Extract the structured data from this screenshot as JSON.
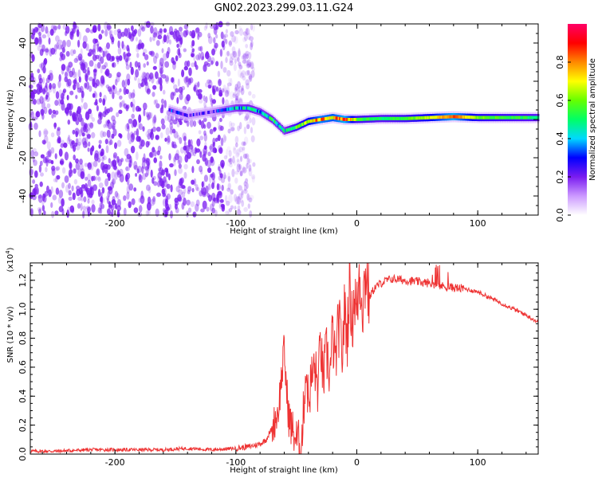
{
  "title": "GN02.2023.299.03.11.G24",
  "colors": {
    "snr_line": "#ee3333",
    "axis": "#000000",
    "spectrogram_points": "#7a1cf0",
    "colorbar_stops": [
      "#ffffff",
      "#cc99ff",
      "#7a1cf0",
      "#0000ff",
      "#00d9ff",
      "#00ff66",
      "#66ff00",
      "#ffff00",
      "#ff8800",
      "#ff0000",
      "#ff0066"
    ]
  },
  "chart_data": [
    {
      "type": "heatmap",
      "xlabel": "Height of straight line (km)",
      "ylabel": "Frequency (Hz)",
      "xlim": [
        -270,
        150
      ],
      "ylim": [
        -50,
        50
      ],
      "x_ticks": [
        -200,
        -100,
        0,
        100
      ],
      "x_tick_labels": [
        "-200",
        "-100",
        "0",
        "100"
      ],
      "y_ticks": [
        -40,
        -20,
        0,
        20,
        40
      ],
      "y_tick_labels": [
        "-40",
        "-20",
        "0",
        "20",
        "40"
      ],
      "description_of_signal": {
        "noise_region_x": [
          -270,
          -100
        ],
        "ridge": [
          {
            "x": -155,
            "freq": 5,
            "amp": 0.25
          },
          {
            "x": -140,
            "freq": 2,
            "amp": 0.2
          },
          {
            "x": -120,
            "freq": 4,
            "amp": 0.2
          },
          {
            "x": -100,
            "freq": 6,
            "amp": 0.4
          },
          {
            "x": -90,
            "freq": 6,
            "amp": 0.45
          },
          {
            "x": -80,
            "freq": 4,
            "amp": 0.4
          },
          {
            "x": -70,
            "freq": 0,
            "amp": 0.45
          },
          {
            "x": -60,
            "freq": -6,
            "amp": 0.4
          },
          {
            "x": -50,
            "freq": -4,
            "amp": 0.55
          },
          {
            "x": -40,
            "freq": -1,
            "amp": 0.65
          },
          {
            "x": -30,
            "freq": 0,
            "amp": 0.8
          },
          {
            "x": -20,
            "freq": 1,
            "amp": 0.75
          },
          {
            "x": -10,
            "freq": 0,
            "amp": 0.85
          },
          {
            "x": 0,
            "freq": 0,
            "amp": 0.55
          },
          {
            "x": 20,
            "freq": 0.5,
            "amp": 0.5
          },
          {
            "x": 40,
            "freq": 0.5,
            "amp": 0.55
          },
          {
            "x": 60,
            "freq": 1,
            "amp": 0.65
          },
          {
            "x": 80,
            "freq": 1.5,
            "amp": 0.85
          },
          {
            "x": 100,
            "freq": 1,
            "amp": 0.6
          },
          {
            "x": 120,
            "freq": 1,
            "amp": 0.55
          },
          {
            "x": 150,
            "freq": 1,
            "amp": 0.5
          }
        ]
      }
    },
    {
      "type": "colorbar",
      "label": "Normalized spectral amplitude",
      "lim": [
        0,
        1
      ],
      "ticks": [
        0.0,
        0.2,
        0.4,
        0.6,
        0.8
      ],
      "tick_labels": [
        "0.0",
        "0.2",
        "0.4",
        "0.6",
        "0.8"
      ]
    },
    {
      "type": "line",
      "xlabel": "Height of straight line (km)",
      "ylabel": "SNR (10 * v/v)",
      "scale_label_base": "(x10",
      "scale_label_exp": "4",
      "scale_label_end": ")",
      "xlim": [
        -270,
        150
      ],
      "ylim": [
        0,
        1.32
      ],
      "x_ticks": [
        -200,
        -100,
        0,
        100
      ],
      "x_tick_labels": [
        "-200",
        "-100",
        "0",
        "100"
      ],
      "y_ticks": [
        0.0,
        0.2,
        0.4,
        0.6,
        0.8,
        1.0,
        1.2
      ],
      "y_tick_labels": [
        "0.0",
        "0.2",
        "0.4",
        "0.6",
        "0.8",
        "1.0",
        "1.2"
      ],
      "series": [
        {
          "x": [
            -270,
            -250,
            -220,
            -200,
            -180,
            -160,
            -140,
            -120,
            -100,
            -90,
            -80,
            -75,
            -70,
            -65,
            -62,
            -60,
            -58,
            -56,
            -54,
            -52,
            -50,
            -48,
            -46,
            -44,
            -42,
            -40,
            -38,
            -35,
            -32,
            -30,
            -28,
            -25,
            -22,
            -20,
            -18,
            -15,
            -12,
            -10,
            -8,
            -6,
            -4,
            -2,
            0,
            2,
            5,
            8,
            10,
            15,
            20,
            25,
            30,
            40,
            50,
            60,
            70,
            80,
            90,
            100,
            110,
            120,
            130,
            140,
            150
          ],
          "values": [
            0.02,
            0.02,
            0.03,
            0.03,
            0.03,
            0.03,
            0.04,
            0.03,
            0.04,
            0.05,
            0.07,
            0.1,
            0.18,
            0.3,
            0.55,
            0.72,
            0.42,
            0.25,
            0.18,
            0.14,
            0.1,
            0.08,
            0.04,
            0.3,
            0.6,
            0.35,
            0.5,
            0.6,
            0.45,
            0.8,
            0.5,
            0.7,
            0.55,
            0.85,
            0.6,
            0.9,
            0.7,
            1.0,
            0.8,
            1.22,
            0.9,
            1.12,
            0.95,
            1.25,
            1.05,
            1.3,
            1.08,
            1.15,
            1.18,
            1.2,
            1.21,
            1.2,
            1.19,
            1.18,
            1.16,
            1.15,
            1.14,
            1.12,
            1.08,
            1.04,
            1.0,
            0.96,
            0.91
          ]
        }
      ]
    }
  ]
}
